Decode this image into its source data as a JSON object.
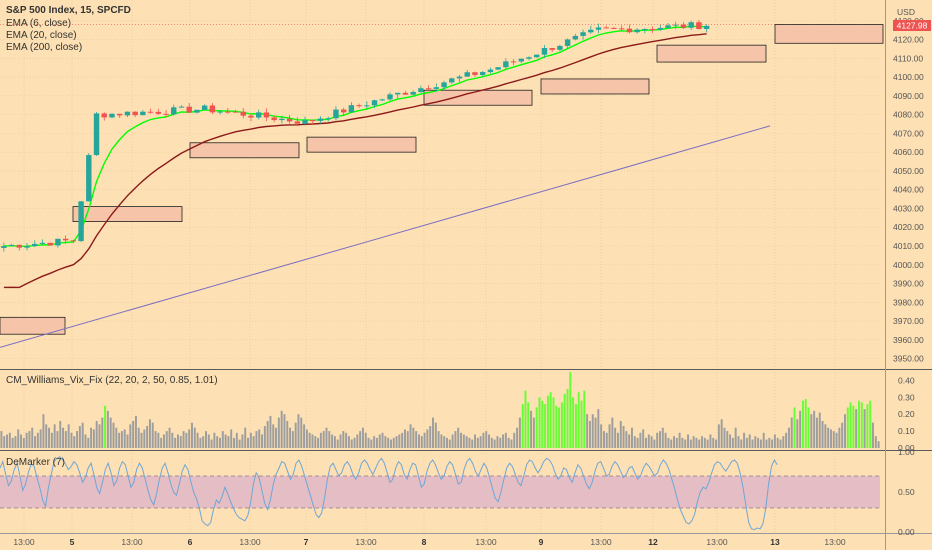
{
  "header": {
    "symbol": "S&P 500 Index, 15, SPCFD",
    "currency": "USD",
    "ema_fast_label": "EMA (6, close)",
    "ema_mid_label": "EMA (20, close)",
    "ema_slow_label": "EMA (200, close)",
    "last_price": "4127.98"
  },
  "indicators": {
    "vix_fix_label": "CM_Williams_Vix_Fix (22, 20, 2, 50, 0.85, 1.01)",
    "demarker_label": "DeMarker (7)"
  },
  "colors": {
    "background": "#fde0b3",
    "candle_up": "#26a69a",
    "candle_down": "#ef5350",
    "ema_fast": "#00ff00",
    "ema_mid": "#8b1a1a",
    "ema_slow": "#7b6fc4",
    "zone_fill": "#f6c4a8",
    "vix_normal": "#9e9e9e",
    "vix_spike": "#66ff33",
    "demarker_line": "#6fa6d6",
    "demarker_band": "#e0b6c8"
  },
  "chart_data": [
    {
      "type": "candlestick",
      "title": "S&P 500 Index, 15, SPCFD",
      "ylim": [
        3945,
        4140
      ],
      "y_ticks": [
        "4130.00",
        "4120.00",
        "4110.00",
        "4100.00",
        "4090.00",
        "4080.00",
        "4070.00",
        "4060.00",
        "4050.00",
        "4040.00",
        "4030.00",
        "4020.00",
        "4010.00",
        "4000.00",
        "3990.00",
        "3980.00",
        "3970.00",
        "3960.00",
        "3950.00"
      ],
      "x_ticks": [
        "13:00",
        "5",
        "13:00",
        "6",
        "13:00",
        "7",
        "13:00",
        "8",
        "13:00",
        "9",
        "13:00",
        "12",
        "13:00",
        "13",
        "13:00"
      ],
      "bold_ticks": [
        "5",
        "6",
        "7",
        "8",
        "9",
        "12",
        "13"
      ],
      "session_closes": [
        4012,
        4080,
        4083,
        4076,
        4091,
        4104,
        4125,
        4128
      ],
      "session_bounds": [
        0,
        12,
        26,
        39,
        51,
        63,
        77,
        92,
        101
      ],
      "ema_200_start": 3956,
      "ema_200_end": 4074,
      "zones": [
        {
          "top": 3972,
          "bottom": 3963
        },
        {
          "top": 4031,
          "bottom": 4023
        },
        {
          "top": 4065,
          "bottom": 4057
        },
        {
          "top": 4068,
          "bottom": 4060
        },
        {
          "top": 4093,
          "bottom": 4085
        },
        {
          "top": 4099,
          "bottom": 4091
        },
        {
          "top": 4117,
          "bottom": 4108
        },
        {
          "top": 4128,
          "bottom": 4118
        }
      ],
      "last_price": 4127.98
    },
    {
      "type": "bar",
      "title": "CM_Williams_Vix_Fix (22, 20, 2, 50, 0.85, 1.01)",
      "ylim": [
        0,
        0.45
      ],
      "y_ticks": [
        "0.40",
        "0.30",
        "0.20",
        "0.10",
        "0.00"
      ],
      "values": [
        0.1,
        0.07,
        0.08,
        0.09,
        0.06,
        0.07,
        0.11,
        0.08,
        0.06,
        0.09,
        0.1,
        0.12,
        0.07,
        0.09,
        0.11,
        0.2,
        0.14,
        0.12,
        0.09,
        0.14,
        0.1,
        0.16,
        0.12,
        0.1,
        0.14,
        0.09,
        0.07,
        0.1,
        0.13,
        0.15,
        0.08,
        0.06,
        0.12,
        0.11,
        0.16,
        0.14,
        0.18,
        0.25,
        0.22,
        0.18,
        0.15,
        0.12,
        0.09,
        0.1,
        0.11,
        0.08,
        0.14,
        0.16,
        0.19,
        0.12,
        0.09,
        0.11,
        0.13,
        0.17,
        0.15,
        0.1,
        0.09,
        0.06,
        0.08,
        0.1,
        0.12,
        0.09,
        0.06,
        0.08,
        0.07,
        0.1,
        0.09,
        0.11,
        0.15,
        0.12,
        0.09,
        0.06,
        0.07,
        0.1,
        0.08,
        0.05,
        0.09,
        0.07,
        0.06,
        0.1,
        0.08,
        0.07,
        0.11,
        0.06,
        0.09,
        0.05,
        0.08,
        0.12,
        0.06,
        0.09,
        0.07,
        0.1,
        0.11,
        0.08,
        0.13,
        0.16,
        0.19,
        0.14,
        0.12,
        0.18,
        0.22,
        0.2,
        0.16,
        0.12,
        0.1,
        0.15,
        0.2,
        0.18,
        0.14,
        0.11,
        0.09,
        0.08,
        0.07,
        0.06,
        0.09,
        0.1,
        0.12,
        0.1,
        0.08,
        0.07,
        0.05,
        0.08,
        0.1,
        0.09,
        0.07,
        0.05,
        0.06,
        0.08,
        0.1,
        0.12,
        0.09,
        0.06,
        0.05,
        0.07,
        0.06,
        0.08,
        0.09,
        0.07,
        0.06,
        0.05,
        0.06,
        0.07,
        0.08,
        0.09,
        0.11,
        0.1,
        0.14,
        0.12,
        0.1,
        0.08,
        0.07,
        0.09,
        0.11,
        0.13,
        0.18,
        0.15,
        0.1,
        0.08,
        0.07,
        0.06,
        0.05,
        0.08,
        0.1,
        0.12,
        0.09,
        0.08,
        0.07,
        0.06,
        0.05,
        0.08,
        0.06,
        0.07,
        0.09,
        0.1,
        0.08,
        0.06,
        0.05,
        0.07,
        0.06,
        0.08,
        0.09,
        0.06,
        0.05,
        0.09,
        0.12,
        0.18,
        0.26,
        0.34,
        0.27,
        0.22,
        0.18,
        0.24,
        0.3,
        0.28,
        0.26,
        0.31,
        0.33,
        0.3,
        0.25,
        0.24,
        0.27,
        0.32,
        0.35,
        0.45,
        0.3,
        0.26,
        0.33,
        0.28,
        0.34,
        0.2,
        0.16,
        0.2,
        0.18,
        0.23,
        0.14,
        0.1,
        0.09,
        0.14,
        0.18,
        0.12,
        0.09,
        0.16,
        0.13,
        0.1,
        0.08,
        0.12,
        0.07,
        0.06,
        0.09,
        0.11,
        0.06,
        0.08,
        0.07,
        0.05,
        0.09,
        0.1,
        0.12,
        0.09,
        0.06,
        0.05,
        0.07,
        0.06,
        0.09,
        0.06,
        0.05,
        0.08,
        0.05,
        0.07,
        0.06,
        0.05,
        0.07,
        0.06,
        0.05,
        0.08,
        0.06,
        0.05,
        0.14,
        0.17,
        0.12,
        0.1,
        0.08,
        0.06,
        0.12,
        0.07,
        0.05,
        0.09,
        0.06,
        0.08,
        0.05,
        0.07,
        0.06,
        0.05,
        0.09,
        0.05,
        0.06,
        0.05,
        0.08,
        0.06,
        0.05,
        0.07,
        0.09,
        0.12,
        0.18,
        0.24,
        0.17,
        0.22,
        0.28,
        0.29,
        0.24,
        0.2,
        0.22,
        0.18,
        0.21,
        0.16,
        0.14,
        0.12,
        0.11,
        0.1,
        0.09,
        0.12,
        0.15,
        0.2,
        0.24,
        0.27,
        0.25,
        0.23,
        0.28,
        0.27,
        0.23,
        0.26,
        0.28,
        0.15,
        0.07,
        0.04
      ]
    },
    {
      "type": "line",
      "title": "DeMarker (7)",
      "ylim": [
        0,
        1
      ],
      "y_ticks": [
        "1.00",
        "0.50",
        "0.00"
      ],
      "bands": [
        0.3,
        0.7
      ],
      "values": [
        0.8,
        0.88,
        0.72,
        0.58,
        0.64,
        0.78,
        0.86,
        0.7,
        0.52,
        0.6,
        0.75,
        0.85,
        0.82,
        0.68,
        0.55,
        0.4,
        0.32,
        0.55,
        0.72,
        0.88,
        0.92,
        0.94,
        0.9,
        0.85,
        0.78,
        0.82,
        0.88,
        0.84,
        0.74,
        0.62,
        0.68,
        0.8,
        0.86,
        0.72,
        0.55,
        0.48,
        0.62,
        0.78,
        0.86,
        0.74,
        0.58,
        0.64,
        0.8,
        0.88,
        0.84,
        0.7,
        0.56,
        0.62,
        0.78,
        0.86,
        0.8,
        0.66,
        0.52,
        0.4,
        0.34,
        0.48,
        0.66,
        0.8,
        0.86,
        0.74,
        0.6,
        0.5,
        0.46,
        0.6,
        0.76,
        0.84,
        0.78,
        0.64,
        0.5,
        0.42,
        0.3,
        0.14,
        0.1,
        0.08,
        0.12,
        0.28,
        0.4,
        0.36,
        0.44,
        0.56,
        0.48,
        0.38,
        0.3,
        0.22,
        0.18,
        0.16,
        0.14,
        0.2,
        0.36,
        0.6,
        0.74,
        0.68,
        0.52,
        0.36,
        0.28,
        0.4,
        0.6,
        0.72,
        0.8,
        0.88,
        0.86,
        0.76,
        0.66,
        0.72,
        0.86,
        0.9,
        0.82,
        0.7,
        0.58,
        0.46,
        0.34,
        0.22,
        0.18,
        0.24,
        0.42,
        0.66,
        0.82,
        0.86,
        0.78,
        0.7,
        0.74,
        0.84,
        0.88,
        0.82,
        0.72,
        0.66,
        0.74,
        0.86,
        0.9,
        0.86,
        0.78,
        0.72,
        0.8,
        0.88,
        0.92,
        0.86,
        0.74,
        0.62,
        0.66,
        0.8,
        0.88,
        0.84,
        0.72,
        0.66,
        0.78,
        0.86,
        0.84,
        0.7,
        0.56,
        0.6,
        0.76,
        0.86,
        0.9,
        0.84,
        0.74,
        0.66,
        0.7,
        0.82,
        0.88,
        0.84,
        0.72,
        0.6,
        0.62,
        0.78,
        0.88,
        0.92,
        0.86,
        0.76,
        0.7,
        0.78,
        0.86,
        0.8,
        0.68,
        0.54,
        0.42,
        0.38,
        0.5,
        0.66,
        0.8,
        0.86,
        0.82,
        0.72,
        0.62,
        0.58,
        0.7,
        0.84,
        0.9,
        0.88,
        0.8,
        0.74,
        0.8,
        0.88,
        0.92,
        0.9,
        0.84,
        0.74,
        0.66,
        0.7,
        0.8,
        0.78,
        0.68,
        0.62,
        0.74,
        0.84,
        0.8,
        0.7,
        0.6,
        0.54,
        0.62,
        0.76,
        0.86,
        0.88,
        0.8,
        0.7,
        0.72,
        0.82,
        0.88,
        0.84,
        0.76,
        0.68,
        0.72,
        0.8,
        0.82,
        0.74,
        0.66,
        0.7,
        0.8,
        0.86,
        0.82,
        0.76,
        0.7,
        0.74,
        0.84,
        0.9,
        0.86,
        0.78,
        0.66,
        0.54,
        0.4,
        0.28,
        0.2,
        0.12,
        0.1,
        0.14,
        0.22,
        0.38,
        0.5,
        0.56,
        0.54,
        0.62,
        0.74,
        0.84,
        0.88,
        0.86,
        0.8,
        0.76,
        0.82,
        0.88,
        0.9,
        0.86,
        0.74,
        0.56,
        0.34,
        0.12,
        0.04,
        0.03,
        0.05,
        0.04,
        0.1,
        0.3,
        0.6,
        0.82,
        0.9,
        0.84
      ]
    }
  ]
}
